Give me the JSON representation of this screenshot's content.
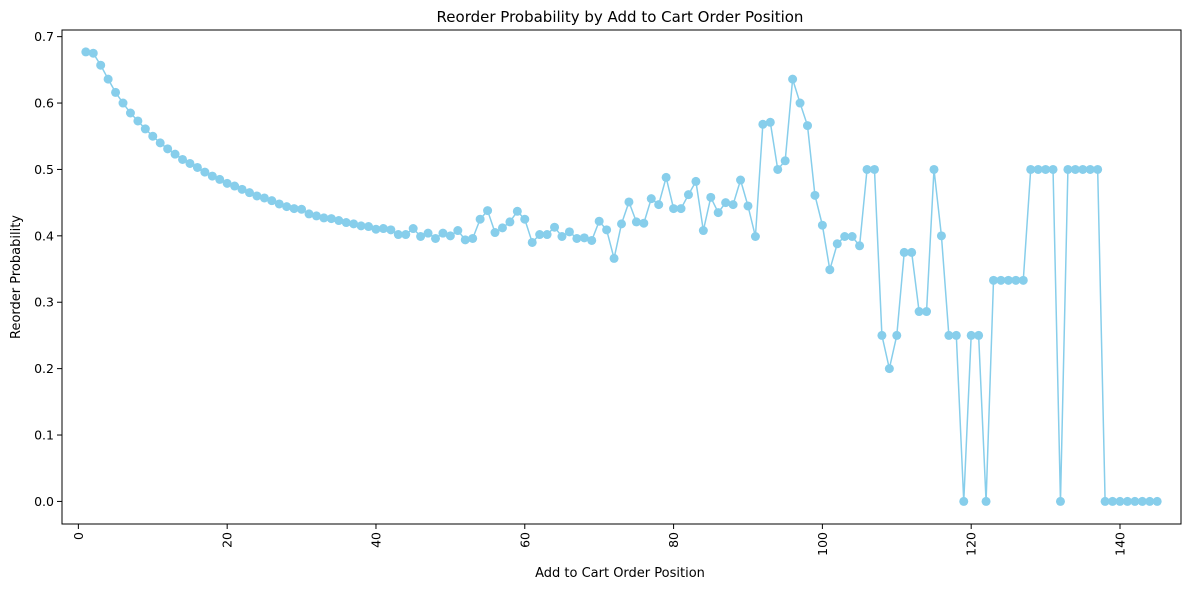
{
  "chart_data": {
    "type": "line",
    "title": "Reorder Probability by Add to Cart Order Position",
    "xlabel": "Add to Cart Order Position",
    "ylabel": "Reorder Probability",
    "xlim": [
      -2.2,
      148.2
    ],
    "ylim": [
      -0.034,
      0.71
    ],
    "xticks": [
      0,
      20,
      40,
      60,
      80,
      100,
      120,
      140
    ],
    "yticks": [
      0.0,
      0.1,
      0.2,
      0.3,
      0.4,
      0.5,
      0.6,
      0.7
    ],
    "xtick_rotation": 90,
    "grid": false,
    "legend": "none",
    "color": "#87CEEB",
    "marker": "circle",
    "series": [
      {
        "x": [
          1,
          2,
          3,
          4,
          5,
          6,
          7,
          8,
          9,
          10,
          11,
          12,
          13,
          14,
          15,
          16,
          17,
          18,
          19,
          20,
          21,
          22,
          23,
          24,
          25,
          26,
          27,
          28,
          29,
          30,
          31,
          32,
          33,
          34,
          35,
          36,
          37,
          38,
          39,
          40,
          41,
          42,
          43,
          44,
          45,
          46,
          47,
          48,
          49,
          50,
          51,
          52,
          53,
          54,
          55,
          56,
          57,
          58,
          59,
          60,
          61,
          62,
          63,
          64,
          65,
          66,
          67,
          68,
          69,
          70,
          71,
          72,
          73,
          74,
          75,
          76,
          77,
          78,
          79,
          80,
          81,
          82,
          83,
          84,
          85,
          86,
          87,
          88,
          89,
          90,
          91,
          92,
          93,
          94,
          95,
          96,
          97,
          98,
          99,
          100,
          101,
          102,
          103,
          104,
          105,
          106,
          107,
          108,
          109,
          110,
          111,
          112,
          113,
          114,
          115,
          116,
          117,
          118,
          119,
          120,
          121,
          122,
          123,
          124,
          125,
          126,
          127,
          128,
          129,
          130,
          131,
          132,
          133,
          134,
          135,
          136,
          137,
          138,
          139,
          140,
          141,
          142,
          143,
          144,
          145
        ],
        "values": [
          0.677,
          0.675,
          0.657,
          0.636,
          0.616,
          0.6,
          0.585,
          0.573,
          0.561,
          0.55,
          0.54,
          0.531,
          0.523,
          0.515,
          0.509,
          0.503,
          0.496,
          0.49,
          0.485,
          0.479,
          0.475,
          0.47,
          0.465,
          0.46,
          0.457,
          0.453,
          0.448,
          0.444,
          0.441,
          0.44,
          0.433,
          0.43,
          0.427,
          0.426,
          0.423,
          0.42,
          0.418,
          0.415,
          0.414,
          0.41,
          0.411,
          0.409,
          0.402,
          0.402,
          0.411,
          0.399,
          0.404,
          0.396,
          0.404,
          0.4,
          0.408,
          0.394,
          0.396,
          0.425,
          0.438,
          0.405,
          0.412,
          0.421,
          0.437,
          0.425,
          0.39,
          0.402,
          0.402,
          0.413,
          0.399,
          0.406,
          0.396,
          0.397,
          0.393,
          0.422,
          0.409,
          0.366,
          0.418,
          0.451,
          0.421,
          0.419,
          0.456,
          0.447,
          0.488,
          0.441,
          0.441,
          0.462,
          0.482,
          0.408,
          0.458,
          0.435,
          0.45,
          0.447,
          0.484,
          0.445,
          0.399,
          0.568,
          0.571,
          0.5,
          0.513,
          0.636,
          0.6,
          0.566,
          0.461,
          0.416,
          0.349,
          0.388,
          0.399,
          0.399,
          0.385,
          0.5,
          0.5,
          0.25,
          0.2,
          0.25,
          0.375,
          0.375,
          0.286,
          0.286,
          0.5,
          0.4,
          0.25,
          0.25,
          0.0,
          0.25,
          0.25,
          0.0,
          0.333,
          0.333,
          0.333,
          0.333,
          0.333,
          0.5,
          0.5,
          0.5,
          0.5,
          0.0,
          0.5,
          0.5,
          0.5,
          0.5,
          0.5,
          0.0,
          0.0,
          0.0,
          0.0,
          0.0,
          0.0,
          0.0,
          0.0
        ]
      }
    ]
  }
}
